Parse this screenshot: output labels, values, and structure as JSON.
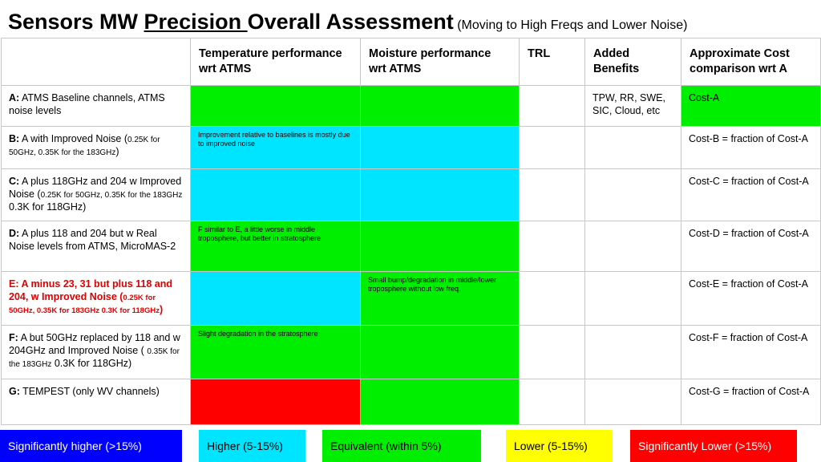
{
  "title": {
    "part1": "Sensors MW ",
    "part2": "Precision ",
    "part3": "Overall Assessment",
    "subtitle": "(Moving to High Freqs and Lower Noise)"
  },
  "columns": [
    "Temperature performance wrt ATMS",
    "Moisture performance wrt ATMS",
    "TRL",
    "Added Benefits",
    "Approximate Cost comparison wrt A"
  ],
  "colors": {
    "green": "#00ee00",
    "cyan": "#00e5ff",
    "red": "#ff0000",
    "blue": "#0000ff",
    "yellow": "#ffff00",
    "white": "#ffffff"
  },
  "rows": [
    {
      "label_letter": "A:",
      "label_text": " ATMS Baseline channels, ATMS noise levels",
      "label_small": "",
      "label_tail": "",
      "temp_note": "",
      "moist_note": "",
      "benefits": "TPW, RR, SWE, SIC, Cloud, etc",
      "cost": "Cost-A"
    },
    {
      "label_letter": "B:",
      "label_text": " A with Improved Noise (",
      "label_small": "0.25K for 50GHz, 0.35K for the 183GHz",
      "label_tail": ")",
      "temp_note": "Improvement relative to baselines is mostly due to improved noise",
      "moist_note": "",
      "benefits": "",
      "cost": "Cost-B = fraction of Cost-A"
    },
    {
      "label_letter": "C:",
      "label_text": " A plus 118GHz and 204 w Improved Noise (",
      "label_small": "0.25K for 50GHz, 0.35K for the 183GHz",
      "label_tail": " 0.3K for 118GHz)",
      "temp_note": "",
      "moist_note": "",
      "benefits": "",
      "cost": "Cost-C = fraction of Cost-A"
    },
    {
      "label_letter": "D:",
      "label_text": " A plus 118 and 204 but w Real Noise levels from ATMS, MicroMAS-2",
      "label_small": "",
      "label_tail": "",
      "temp_note": "F similar to E, a little worse in middle troposphere, but better in stratosphere",
      "moist_note": "",
      "benefits": "",
      "cost": "Cost-D = fraction of Cost-A"
    },
    {
      "label_letter": "E:",
      "label_text": " A minus 23, 31 but plus 118 and 204, w Improved Noise (",
      "label_small": "0.25K for 50GHz, 0.35K for 183GHz 0.3K for 118GHz",
      "label_tail": ")",
      "temp_note": "",
      "moist_note": "Small bump/degradation in middle/lower troposphere without low freq.",
      "benefits": "",
      "cost": "Cost-E = fraction of Cost-A"
    },
    {
      "label_letter": "F:",
      "label_text": " A but 50GHz replaced by 118 and w 204GHz and Improved Noise ( ",
      "label_small": "0.35K for the 183GHz",
      "label_tail": " 0.3K for 118GHz)",
      "temp_note": "Slight degradation in the stratosphere",
      "moist_note": "",
      "benefits": "",
      "cost": "Cost-F = fraction of Cost-A"
    },
    {
      "label_letter": "G:",
      "label_text": " TEMPEST (only WV channels)",
      "label_small": "",
      "label_tail": "",
      "temp_note": "",
      "moist_note": "",
      "benefits": "",
      "cost": "Cost-G = fraction of Cost-A"
    }
  ],
  "legend": [
    "Significantly higher (>15%)",
    "Higher (5-15%)",
    "Equivalent (within 5%)",
    "Lower (5-15%)",
    "Significantly Lower (>15%)"
  ]
}
